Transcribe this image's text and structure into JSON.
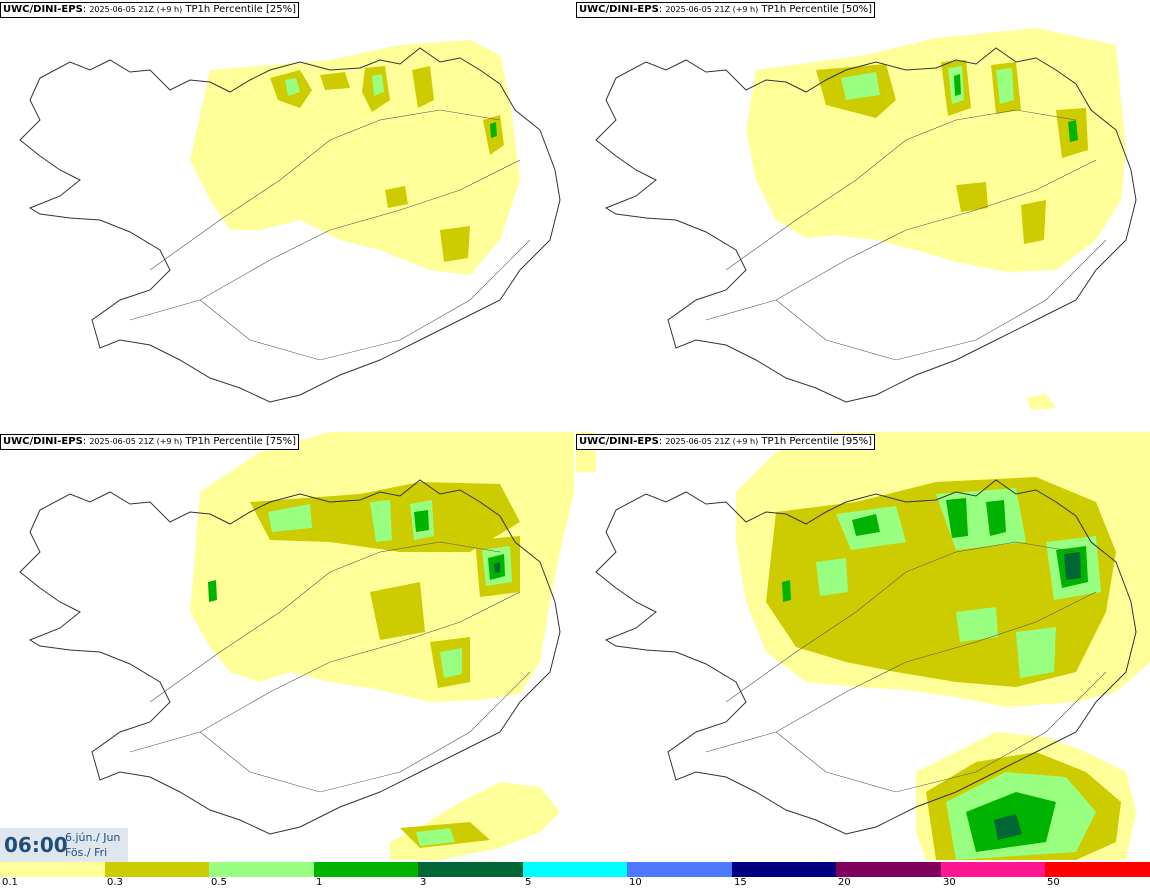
{
  "panels": [
    {
      "model": "UWC/DINI-EPS",
      "run": "2025-06-05 21Z (+9 h)",
      "field": "TP1h Percentile [25%]"
    },
    {
      "model": "UWC/DINI-EPS",
      "run": "2025-06-05 21Z (+9 h)",
      "field": "TP1h Percentile [50%]"
    },
    {
      "model": "UWC/DINI-EPS",
      "run": "2025-06-05 21Z (+9 h)",
      "field": "TP1h Percentile [75%]"
    },
    {
      "model": "UWC/DINI-EPS",
      "run": "2025-06-05 21Z (+9 h)",
      "field": "TP1h Percentile [95%]"
    }
  ],
  "valid_time": {
    "hour": "06:00",
    "date_line1": "6.jún./ Jun",
    "date_line2": "Fös./ Fri"
  },
  "legend": {
    "colors": [
      "#ffff99",
      "#cccc00",
      "#99ff80",
      "#00b300",
      "#006633",
      "#00ffff",
      "#4d79ff",
      "#000080",
      "#800060",
      "#ff1493",
      "#ff0000"
    ],
    "ticks": [
      "0.1",
      "0.3",
      "0.5",
      "1",
      "3",
      "5",
      "10",
      "15",
      "20",
      "30",
      "50"
    ]
  },
  "colors": {
    "coast": "#333333",
    "roads": "#555555",
    "title_text": "#1f4e79",
    "time_box_bg": "#dfe6ee"
  }
}
